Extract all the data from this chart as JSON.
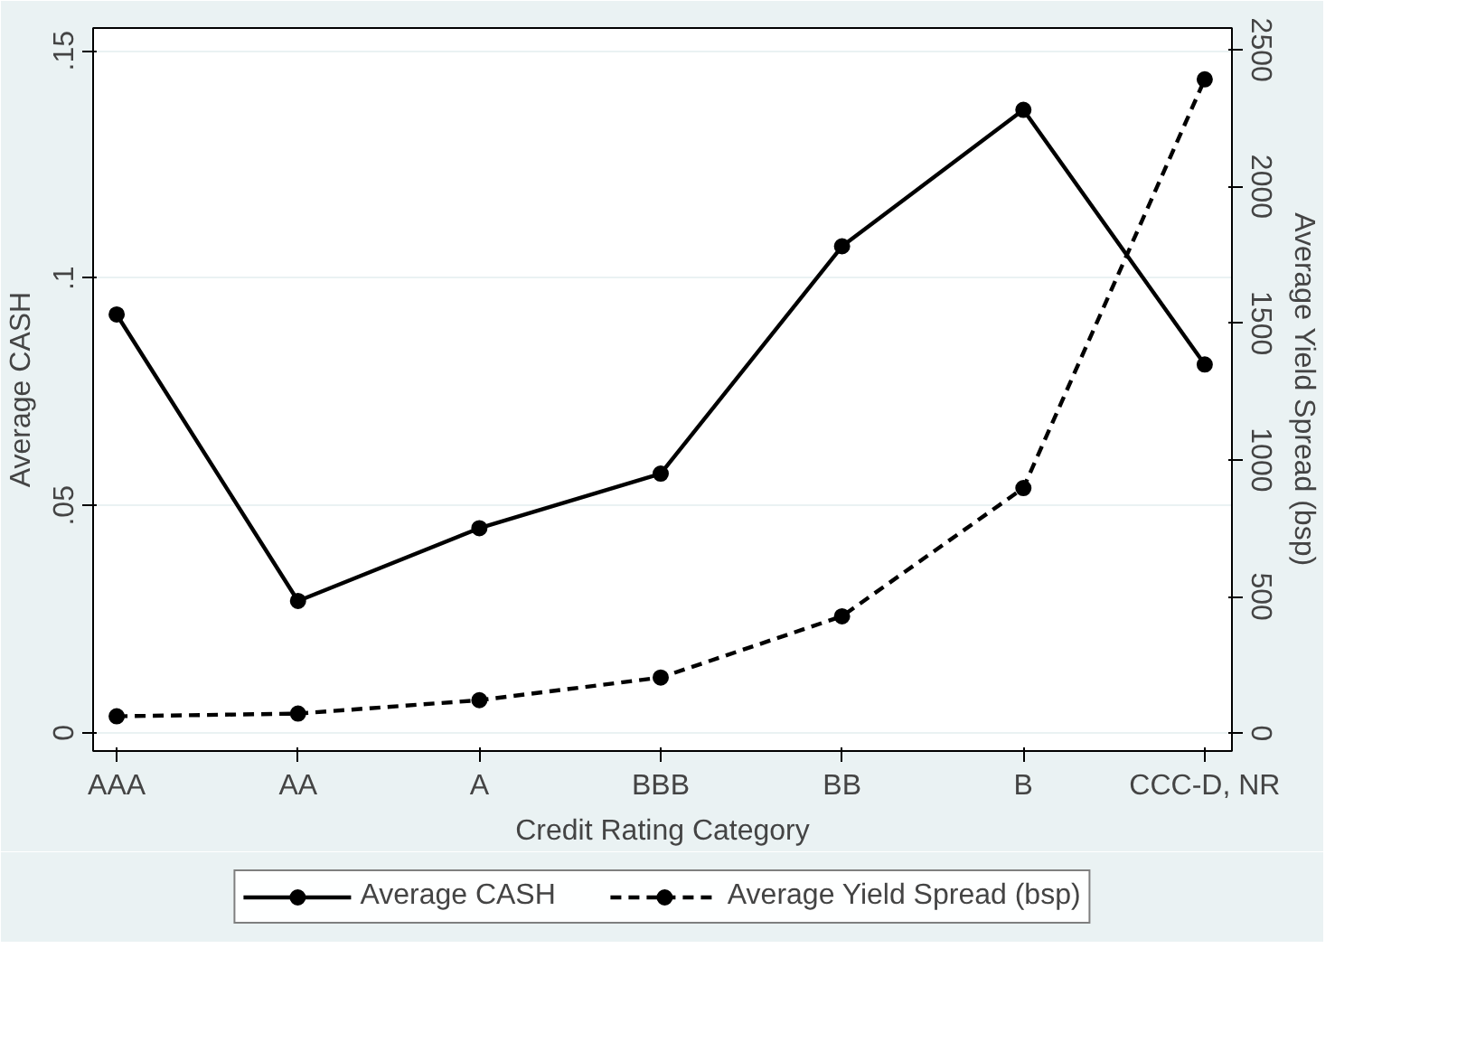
{
  "chart_data": {
    "type": "line",
    "xlabel": "Credit Rating Category",
    "ylabel": "Average CASH",
    "y2label": "Average Yield Spread (bsp)",
    "categories": [
      "AAA",
      "AA",
      "A",
      "BBB",
      "BB",
      "B",
      "CCC-D, NR"
    ],
    "series": [
      {
        "name": "Average CASH",
        "color": "#000000",
        "line_style": "solid",
        "values": [
          0.092,
          0.029,
          0.045,
          0.057,
          0.107,
          0.137,
          0.081
        ]
      },
      {
        "name": "Average Yield Spread (bsp)",
        "color": "#000000",
        "line_style": "dashed",
        "axis": "y2",
        "values": [
          62,
          72,
          121,
          204,
          428,
          897,
          2392
        ]
      }
    ],
    "ylim": [
      -0.004,
      0.155
    ],
    "yticks": [
      {
        "value": 0,
        "label": "0"
      },
      {
        "value": 0.05,
        "label": ".05"
      },
      {
        "value": 0.1,
        "label": ".1"
      },
      {
        "value": 0.15,
        "label": ".15"
      }
    ],
    "y2lim": [
      -65,
      2580
    ],
    "y2ticks": [
      0,
      500,
      1000,
      1500,
      2000,
      2500
    ],
    "grid": "y",
    "marker": "circle",
    "legend": "bottom"
  }
}
